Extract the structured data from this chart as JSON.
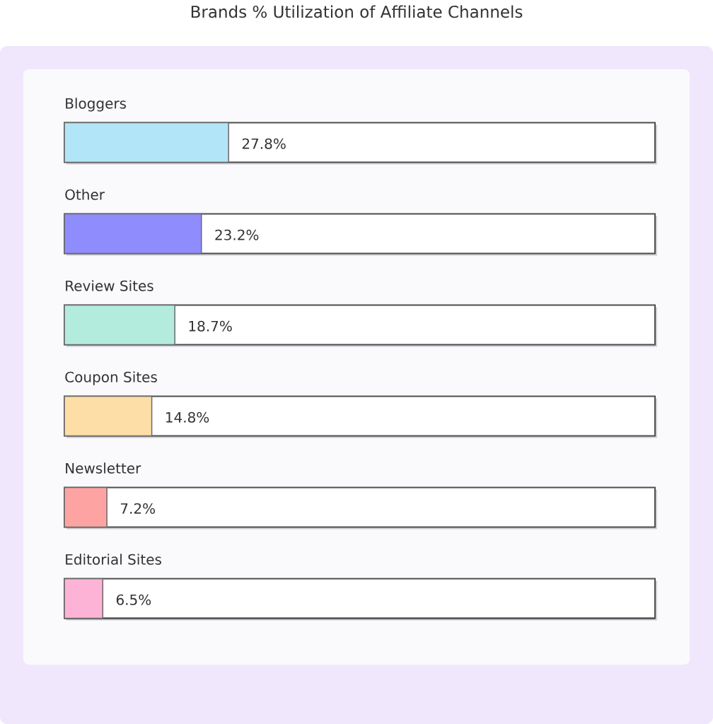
{
  "chart_data": {
    "type": "bar",
    "orientation": "horizontal",
    "title": "Brands % Utilization of Affiliate Channels",
    "categories": [
      "Bloggers",
      "Other",
      "Review Sites",
      "Coupon Sites",
      "Newsletter",
      "Editorial Sites"
    ],
    "values": [
      27.8,
      23.2,
      18.7,
      14.8,
      7.2,
      6.5
    ],
    "colors": [
      "#b3e5f8",
      "#8f8cfd",
      "#b3ecdd",
      "#fddea6",
      "#fda4a3",
      "#fdb3d6"
    ],
    "value_labels": [
      "27.8%",
      "23.2%",
      "18.7%",
      "14.8%",
      "7.2%",
      "6.5%"
    ],
    "xlim": [
      0,
      100
    ],
    "tick_labels": "y"
  }
}
